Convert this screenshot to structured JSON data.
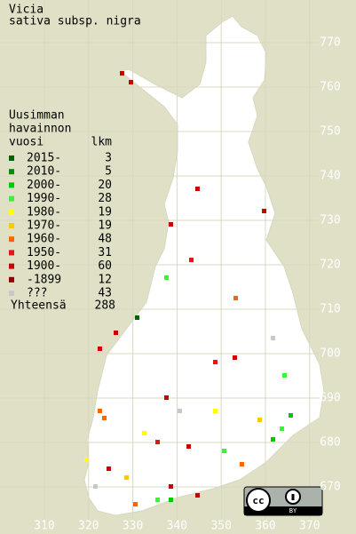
{
  "title_lines": [
    "Vicia",
    "sativa subsp. nigra"
  ],
  "legend": {
    "header_lines": [
      "Uusimman",
      "havainnon"
    ],
    "column_headers": [
      "vuosi",
      "lkm"
    ],
    "entries": [
      {
        "label": "2015-",
        "count": 3,
        "color": "#006400"
      },
      {
        "label": "2010-",
        "count": 5,
        "color": "#008c00"
      },
      {
        "label": "2000-",
        "count": 20,
        "color": "#00c800"
      },
      {
        "label": "1990-",
        "count": 28,
        "color": "#3cf03c"
      },
      {
        "label": "1980-",
        "count": 19,
        "color": "#ffff00"
      },
      {
        "label": "1970-",
        "count": 19,
        "color": "#ffc800"
      },
      {
        "label": "1960-",
        "count": 48,
        "color": "#ff6400"
      },
      {
        "label": "1950-",
        "count": 31,
        "color": "#e61414"
      },
      {
        "label": "1900-",
        "count": 60,
        "color": "#c80000"
      },
      {
        "label": "-1899",
        "count": 12,
        "color": "#8c0000"
      },
      {
        "label": "???",
        "count": 43,
        "color": "#c8c8c8"
      }
    ],
    "total": {
      "label": "Yhteensä",
      "count": 288
    }
  },
  "grid": {
    "northing": [
      770,
      760,
      750,
      740,
      730,
      720,
      710,
      700,
      690,
      680,
      670
    ],
    "easting": [
      310,
      320,
      330,
      340,
      350,
      360,
      370
    ]
  },
  "license": "BY"
}
